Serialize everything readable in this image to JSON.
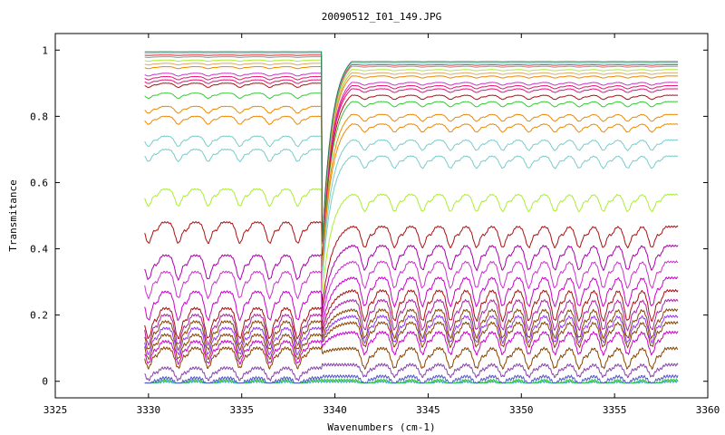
{
  "chart_data": {
    "type": "line",
    "title": "20090512_I01_149.JPG",
    "xlabel": "Wavenumbers (cm-1)",
    "ylabel": "Transmitance",
    "xlim": [
      3325,
      3360
    ],
    "ylim": [
      -0.05,
      1.05
    ],
    "xticks": [
      3325,
      3330,
      3335,
      3340,
      3345,
      3350,
      3355,
      3360
    ],
    "yticks": [
      0,
      0.2,
      0.4,
      0.6,
      0.8,
      1
    ],
    "x_range_of_data": [
      3329.8,
      3358.4
    ],
    "step_edge_x": 3339.3,
    "absorption_line_positions": [
      3330.0,
      3331.6,
      3333.2,
      3334.9,
      3336.5,
      3338.0,
      3341.6,
      3343.2,
      3344.7,
      3346.2,
      3347.6,
      3349.0,
      3350.4,
      3351.8,
      3353.1,
      3354.4,
      3355.7,
      3357.0
    ],
    "grid": false,
    "legend": "none",
    "series": [
      {
        "color": "#3399ff",
        "left_level": 0.0,
        "right_level": 0.0
      },
      {
        "color": "#33cc33",
        "left_level": 0.003,
        "right_level": 0.003
      },
      {
        "color": "#5555cc",
        "left_level": 0.01,
        "right_level": 0.015
      },
      {
        "color": "#8844aa",
        "left_level": 0.04,
        "right_level": 0.05
      },
      {
        "color": "#884400",
        "left_level": 0.1,
        "right_level": 0.1
      },
      {
        "color": "#cc00cc",
        "left_level": 0.12,
        "right_level": 0.15
      },
      {
        "color": "#884400",
        "left_level": 0.14,
        "right_level": 0.18
      },
      {
        "color": "#9933ff",
        "left_level": 0.16,
        "right_level": 0.2
      },
      {
        "color": "#884400",
        "left_level": 0.18,
        "right_level": 0.22
      },
      {
        "color": "#aa22aa",
        "left_level": 0.2,
        "right_level": 0.25
      },
      {
        "color": "#aa1111",
        "left_level": 0.22,
        "right_level": 0.28
      },
      {
        "color": "#cc00cc",
        "left_level": 0.27,
        "right_level": 0.32
      },
      {
        "color": "#cc33cc",
        "left_level": 0.33,
        "right_level": 0.37
      },
      {
        "color": "#aa00aa",
        "left_level": 0.38,
        "right_level": 0.42
      },
      {
        "color": "#aa1111",
        "left_level": 0.48,
        "right_level": 0.48
      },
      {
        "color": "#aaee33",
        "left_level": 0.58,
        "right_level": 0.58
      },
      {
        "color": "#77cccc",
        "left_level": 0.7,
        "right_level": 0.7
      },
      {
        "color": "#77cccc",
        "left_level": 0.74,
        "right_level": 0.75
      },
      {
        "color": "#ee8800",
        "left_level": 0.8,
        "right_level": 0.8
      },
      {
        "color": "#ee8800",
        "left_level": 0.83,
        "right_level": 0.83
      },
      {
        "color": "#33cc33",
        "left_level": 0.87,
        "right_level": 0.87
      },
      {
        "color": "#aa1111",
        "left_level": 0.9,
        "right_level": 0.89
      },
      {
        "color": "#ee1177",
        "left_level": 0.91,
        "right_level": 0.91
      },
      {
        "color": "#ee1177",
        "left_level": 0.92,
        "right_level": 0.92
      },
      {
        "color": "#cc33cc",
        "left_level": 0.93,
        "right_level": 0.93
      },
      {
        "color": "#ee8800",
        "left_level": 0.95,
        "right_level": 0.95
      },
      {
        "color": "#ddaa66",
        "left_level": 0.96,
        "right_level": 0.96
      },
      {
        "color": "#aaee33",
        "left_level": 0.97,
        "right_level": 0.97
      },
      {
        "color": "#999999",
        "left_level": 0.98,
        "right_level": 0.98
      },
      {
        "color": "#ff3333",
        "left_level": 0.985,
        "right_level": 0.985
      },
      {
        "color": "#77cccc",
        "left_level": 0.99,
        "right_level": 0.99
      },
      {
        "color": "#227755",
        "left_level": 0.995,
        "right_level": 0.995
      }
    ]
  }
}
